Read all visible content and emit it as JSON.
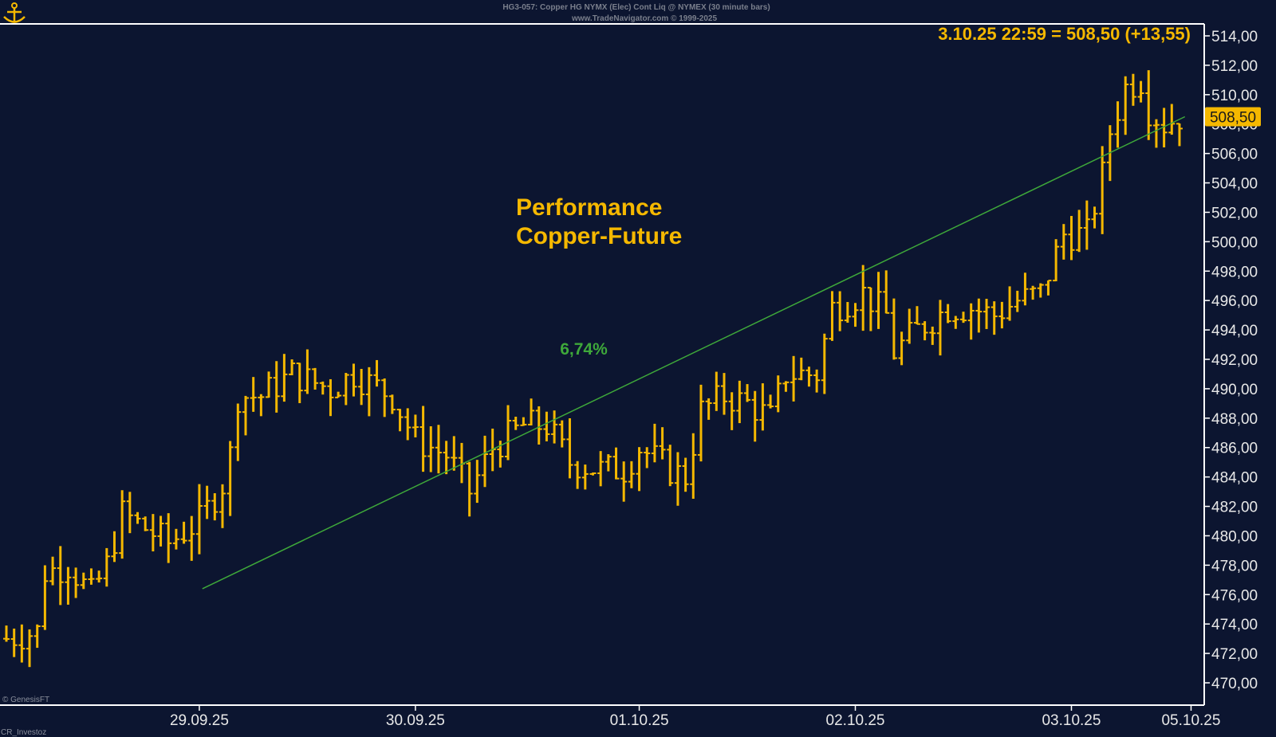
{
  "header": {
    "title_line1": "HG3-057:  Copper HG NYMX (Elec) Cont Liq @ NYMEX  (30 minute bars)",
    "title_line2": "www.TradeNavigator.com © 1999-2025"
  },
  "footer": {
    "credit_genesis": "© GenesisFT",
    "credit_cr": "CR_Investoz"
  },
  "colors": {
    "background": "#0c1530",
    "bars": "#f5b800",
    "trend": "#3ea83a",
    "frame": "#ffffff"
  },
  "chart_data": {
    "type": "ohlc",
    "instrument": "Copper HG NYMX (Elec) Cont Liq",
    "bar_interval": "30 minute bars",
    "last_quote": {
      "label": "3.10.25 22:59 = 508,50 (+13,55)",
      "value": 508.5,
      "value_label": "508,50"
    },
    "annotation": {
      "line1": "Performance",
      "line2": "Copper-Future"
    },
    "trendline": {
      "label": "6,74%",
      "start": {
        "x": 25.4,
        "y": 476.4
      },
      "end": {
        "x": 152.7,
        "y": 508.5
      }
    },
    "y_axis": {
      "min": 470,
      "max": 514,
      "ticks": [
        "514,00",
        "512,00",
        "510,00",
        "508,00",
        "506,00",
        "504,00",
        "502,00",
        "500,00",
        "498,00",
        "496,00",
        "494,00",
        "492,00",
        "490,00",
        "488,00",
        "486,00",
        "484,00",
        "482,00",
        "480,00",
        "478,00",
        "476,00",
        "474,00",
        "472,00",
        "470,00"
      ]
    },
    "x_axis": {
      "range": [
        0,
        155
      ],
      "ticks": [
        {
          "label": "29.09.25",
          "x": 25
        },
        {
          "label": "30.09.25",
          "x": 53
        },
        {
          "label": "01.10.25",
          "x": 82
        },
        {
          "label": "02.10.25",
          "x": 110
        },
        {
          "label": "03.10.25",
          "x": 138
        },
        {
          "label": "05.10.25",
          "x": 153.5
        }
      ]
    },
    "bar_anchors": [
      [
        0,
        473.0
      ],
      [
        4,
        473.5
      ],
      [
        5,
        477.5
      ],
      [
        8,
        478.0
      ],
      [
        11,
        476.0
      ],
      [
        13,
        478.0
      ],
      [
        15,
        481.5
      ],
      [
        21,
        479.5
      ],
      [
        25,
        481.0
      ],
      [
        28,
        483.5
      ],
      [
        29,
        485.5
      ],
      [
        30,
        489.5
      ],
      [
        33,
        489.5
      ],
      [
        37,
        491.0
      ],
      [
        42,
        490.0
      ],
      [
        45,
        491.0
      ],
      [
        50,
        489.5
      ],
      [
        53,
        486.5
      ],
      [
        55,
        486.0
      ],
      [
        57,
        485.5
      ],
      [
        60,
        483.0
      ],
      [
        63,
        486.0
      ],
      [
        67,
        487.5
      ],
      [
        70,
        487.5
      ],
      [
        73,
        485.0
      ],
      [
        77,
        484.5
      ],
      [
        80,
        484.5
      ],
      [
        82,
        486.0
      ],
      [
        86,
        484.5
      ],
      [
        88,
        484.0
      ],
      [
        90,
        488.5
      ],
      [
        93,
        489.5
      ],
      [
        96,
        489.0
      ],
      [
        99,
        488.0
      ],
      [
        101,
        491.0
      ],
      [
        105,
        491.0
      ],
      [
        107,
        495.5
      ],
      [
        111,
        496.5
      ],
      [
        114,
        495.0
      ],
      [
        115,
        492.5
      ],
      [
        118,
        494.0
      ],
      [
        122,
        495.5
      ],
      [
        125,
        495.5
      ],
      [
        128,
        495.0
      ],
      [
        131,
        496.0
      ],
      [
        134,
        496.5
      ],
      [
        137,
        500.5
      ],
      [
        140,
        500.5
      ],
      [
        141,
        502.5
      ],
      [
        142,
        504.5
      ],
      [
        143,
        507.5
      ],
      [
        145,
        510.5
      ],
      [
        147,
        511.0
      ],
      [
        148,
        509.0
      ],
      [
        150,
        508.0
      ],
      [
        152,
        508.5
      ]
    ]
  }
}
